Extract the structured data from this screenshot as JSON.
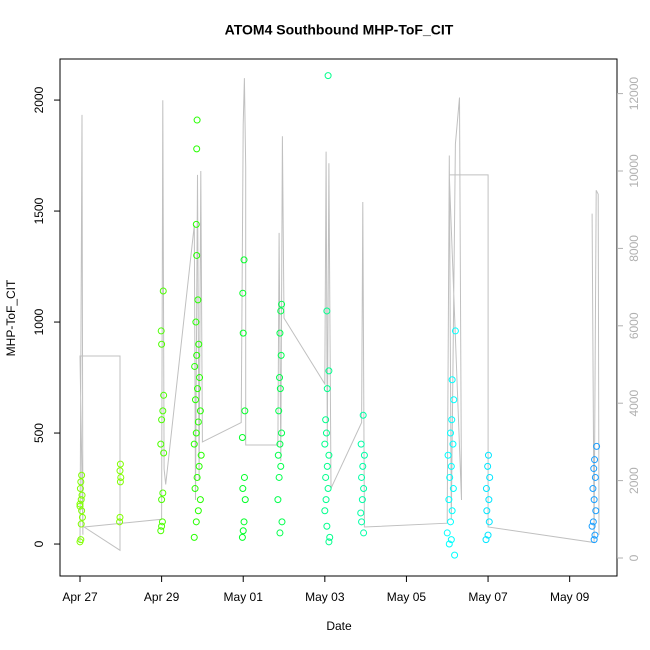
{
  "chart_data": {
    "type": "scatter",
    "title": "ATOM4 Southbound MHP-ToF_CIT",
    "x_label": "Date",
    "y_label": "MHP-ToF_CIT",
    "xlim": [
      -0.49,
      13.16
    ],
    "ylim": [
      -144,
      2185
    ],
    "y2lim": [
      -465,
      12894
    ],
    "xticks": [
      {
        "value": 0,
        "label": "Apr 27"
      },
      {
        "value": 2,
        "label": "Apr 29"
      },
      {
        "value": 4,
        "label": "May 01"
      },
      {
        "value": 6,
        "label": "May 03"
      },
      {
        "value": 8,
        "label": "May 05"
      },
      {
        "value": 10,
        "label": "May 07"
      },
      {
        "value": 12,
        "label": "May 09"
      }
    ],
    "yticks": [
      0,
      500,
      1000,
      1500,
      2000
    ],
    "y2ticks": [
      0,
      2000,
      4000,
      6000,
      8000,
      10000,
      12000
    ],
    "groups": [
      {
        "color": "#80ff00",
        "x": [
          0.0,
          0.02,
          0.04,
          0.0,
          0.03,
          0.05,
          0.01,
          0.02,
          0.04,
          0.06,
          0.03,
          0.0
        ],
        "values": [
          10,
          20,
          150,
          180,
          200,
          220,
          250,
          280,
          310,
          120,
          90,
          170
        ]
      },
      {
        "color": "#80ff00",
        "x": [
          0.97,
          0.98,
          0.99,
          1.0,
          0.98,
          0.99
        ],
        "values": [
          100,
          120,
          280,
          300,
          330,
          360
        ]
      },
      {
        "color": "#4cff00",
        "x": [
          1.98,
          2.0,
          2.02,
          2.0,
          2.03,
          2.05,
          1.98,
          2.0,
          2.03,
          2.05,
          2.0,
          1.99,
          2.04
        ],
        "values": [
          60,
          80,
          100,
          200,
          230,
          410,
          450,
          560,
          600,
          670,
          900,
          960,
          1140
        ]
      },
      {
        "color": "#26ff00",
        "x": [
          2.8,
          2.85,
          2.9,
          2.95,
          2.82,
          2.87,
          2.92,
          2.97,
          2.8,
          2.85,
          2.9,
          2.95,
          2.83,
          2.88,
          2.93,
          2.81,
          2.86,
          2.91,
          2.84,
          2.89,
          2.86,
          2.85,
          2.86,
          2.87
        ],
        "values": [
          30,
          100,
          150,
          200,
          250,
          300,
          350,
          400,
          450,
          500,
          550,
          600,
          650,
          700,
          750,
          800,
          850,
          900,
          1000,
          1100,
          1300,
          1440,
          1780,
          1910
        ]
      },
      {
        "color": "#00ff26",
        "x": [
          3.98,
          4.0,
          4.02,
          4.05,
          3.99,
          4.03,
          3.98,
          4.04,
          4.0,
          3.99,
          4.02
        ],
        "values": [
          30,
          60,
          100,
          200,
          250,
          300,
          480,
          600,
          950,
          1130,
          1280
        ]
      },
      {
        "color": "#00ff4c",
        "x": [
          4.9,
          4.95,
          4.85,
          4.88,
          4.92,
          4.86,
          4.9,
          4.94,
          4.87,
          4.91,
          4.89,
          4.93,
          4.9,
          4.92,
          4.94
        ],
        "values": [
          50,
          100,
          200,
          300,
          350,
          400,
          450,
          500,
          600,
          700,
          750,
          850,
          950,
          1050,
          1080
        ]
      },
      {
        "color": "#00ff8c",
        "x": [
          6.1,
          6.12,
          6.05,
          6.0,
          6.03,
          6.08,
          6.02,
          6.06,
          6.1,
          6.0,
          6.04,
          6.02,
          6.06,
          6.1,
          6.05,
          6.08
        ],
        "values": [
          10,
          30,
          80,
          150,
          200,
          250,
          300,
          350,
          400,
          450,
          500,
          560,
          700,
          780,
          1050,
          2110
        ]
      },
      {
        "color": "#00ffa6",
        "x": [
          6.95,
          6.9,
          6.88,
          6.92,
          6.95,
          6.9,
          6.93,
          6.97,
          6.89,
          6.94
        ],
        "values": [
          50,
          100,
          140,
          200,
          250,
          300,
          350,
          400,
          450,
          580
        ]
      },
      {
        "color": "#00ffff",
        "x": [
          9.05,
          9.1,
          9.0,
          9.08,
          9.12,
          9.04,
          9.15,
          9.06,
          9.1,
          9.02,
          9.14,
          9.08,
          9.11,
          9.16,
          9.12,
          9.2,
          9.18
        ],
        "values": [
          0,
          20,
          50,
          100,
          150,
          200,
          250,
          300,
          350,
          400,
          450,
          500,
          560,
          650,
          740,
          960,
          -50
        ]
      },
      {
        "color": "#00e6ff",
        "x": [
          9.95,
          10.0,
          10.03,
          9.97,
          10.02,
          9.96,
          10.04,
          9.99,
          10.01
        ],
        "values": [
          20,
          40,
          100,
          150,
          200,
          250,
          300,
          350,
          400
        ]
      },
      {
        "color": "#1a9fff",
        "x": [
          12.6,
          12.62,
          12.55,
          12.58,
          12.64,
          12.6,
          12.57,
          12.63,
          12.59,
          12.61,
          12.66
        ],
        "values": [
          20,
          40,
          80,
          100,
          150,
          200,
          250,
          300,
          340,
          380,
          440
        ]
      }
    ],
    "line": {
      "axis": "y2",
      "color": "#c0c0c0",
      "x": [
        0.0,
        0.05,
        0.07,
        0.0,
        0.98,
        0.98,
        0.1,
        2.0,
        2.03,
        2.06,
        2.1,
        2.8,
        2.83,
        2.88,
        2.92,
        2.96,
        3.0,
        3.95,
        4.0,
        4.03,
        4.06,
        4.06,
        4.85,
        4.88,
        4.92,
        4.96,
        5.0,
        6.0,
        6.03,
        6.06,
        6.1,
        6.15,
        6.9,
        6.93,
        6.97,
        9.0,
        9.05,
        9.1,
        9.2,
        9.3,
        9.35,
        9.05,
        10.0,
        10.0,
        12.6,
        12.55,
        12.6,
        12.65,
        12.7,
        12.72
      ],
      "values": [
        400,
        11450,
        600,
        5220,
        5220,
        200,
        800,
        1000,
        11830,
        2300,
        1900,
        8600,
        1500,
        9900,
        2000,
        10000,
        3000,
        3500,
        11200,
        12400,
        10100,
        2920,
        2920,
        8400,
        2500,
        10900,
        6200,
        4500,
        10500,
        3000,
        10200,
        1800,
        3500,
        9200,
        800,
        900,
        10400,
        1000,
        10700,
        11900,
        1500,
        9900,
        9900,
        800,
        400,
        8900,
        600,
        9500,
        9400,
        600
      ]
    }
  }
}
